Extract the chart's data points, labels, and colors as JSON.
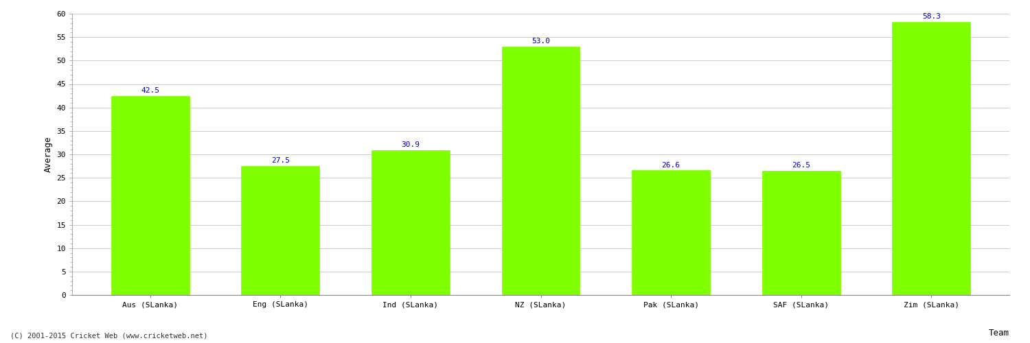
{
  "categories": [
    "Aus (SLanka)",
    "Eng (SLanka)",
    "Ind (SLanka)",
    "NZ (SLanka)",
    "Pak (SLanka)",
    "SAF (SLanka)",
    "Zim (SLanka)"
  ],
  "values": [
    42.5,
    27.5,
    30.9,
    53.0,
    26.6,
    26.5,
    58.3
  ],
  "bar_color": "#7fff00",
  "bar_edge_color": "#7fff00",
  "value_label_color": "#0000cc",
  "xlabel": "Team",
  "ylabel": "Average",
  "ylim": [
    0,
    60
  ],
  "yticks": [
    0,
    5,
    10,
    15,
    20,
    25,
    30,
    35,
    40,
    45,
    50,
    55,
    60
  ],
  "grid_color": "#cccccc",
  "background_color": "#ffffff",
  "footer_text": "(C) 2001-2015 Cricket Web (www.cricketweb.net)",
  "value_fontsize": 8,
  "axis_label_fontsize": 9,
  "tick_fontsize": 8,
  "footer_fontsize": 7.5
}
